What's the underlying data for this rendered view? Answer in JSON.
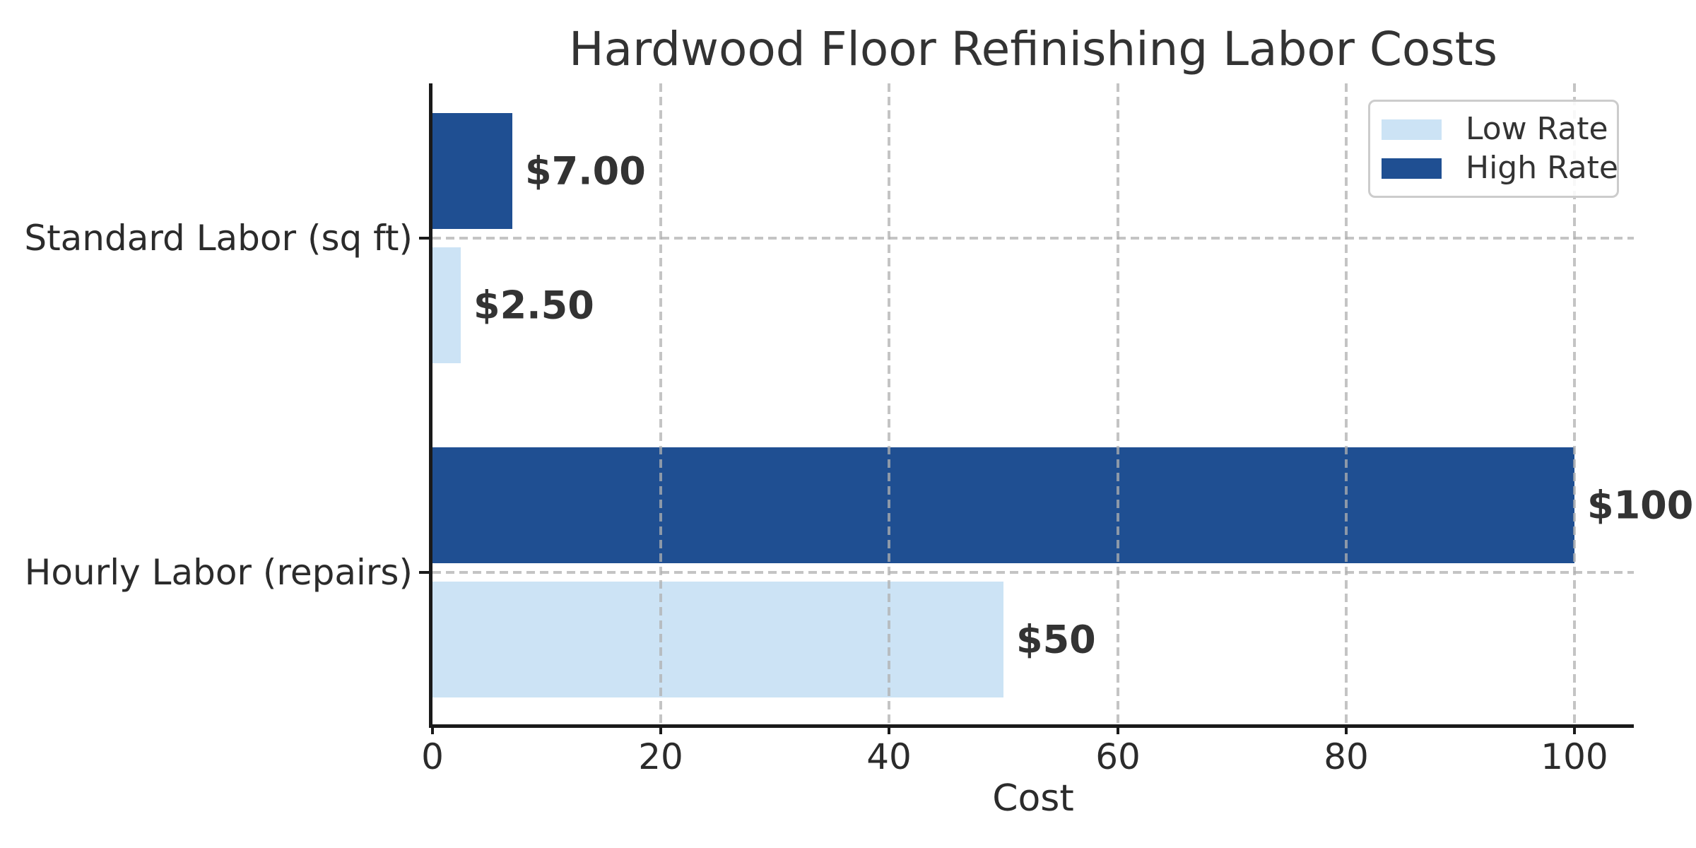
{
  "title": "Hardwood Floor Refinishing Labor Costs",
  "xlabel": "Cost",
  "legend": {
    "items": [
      {
        "label": "Low Rate",
        "color": "#cce3f5"
      },
      {
        "label": "High Rate",
        "color": "#1f4f92"
      }
    ],
    "position": "upper right"
  },
  "colors": {
    "low_rate": "#cce3f5",
    "high_rate": "#1f4f92",
    "axis": "#1a1a1a",
    "grid": "#b0b0b0",
    "text": "#333333"
  },
  "chart_data": {
    "type": "bar",
    "orientation": "horizontal",
    "title": "Hardwood Floor Refinishing Labor Costs",
    "xlabel": "Cost",
    "ylabel": "",
    "categories": [
      "Standard Labor (sq ft)",
      "Hourly Labor (repairs)"
    ],
    "series": [
      {
        "name": "Low Rate",
        "color": "#cce3f5",
        "values": [
          2.5,
          50
        ],
        "labels": [
          "$2.50",
          "$50"
        ]
      },
      {
        "name": "High Rate",
        "color": "#1f4f92",
        "values": [
          7,
          100
        ],
        "labels": [
          "$7.00",
          "$100"
        ]
      }
    ],
    "xlim": [
      0,
      105
    ],
    "xticks": [
      0,
      20,
      40,
      60,
      80,
      100
    ],
    "xtick_labels": [
      "0",
      "20",
      "40",
      "60",
      "80",
      "100"
    ],
    "grid": true,
    "grid_style": "dashed",
    "legend_position": "upper right",
    "bar_value_labels_bold": true
  }
}
